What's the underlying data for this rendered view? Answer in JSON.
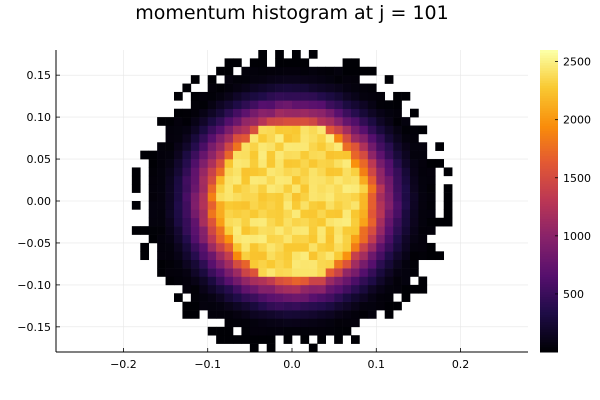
{
  "chart_data": {
    "type": "heatmap",
    "title": "momentum histogram at j = 101",
    "xlabel": "",
    "ylabel": "",
    "xlim": [
      -0.28,
      0.28
    ],
    "ylim": [
      -0.18,
      0.18
    ],
    "x_ticks": [
      -0.2,
      -0.1,
      0.0,
      0.1,
      0.2
    ],
    "x_tick_labels": [
      "−0.2",
      "−0.1",
      "0.0",
      "0.1",
      "0.2"
    ],
    "y_ticks": [
      0.15,
      0.1,
      0.05,
      0.0,
      -0.05,
      -0.1,
      -0.15
    ],
    "y_tick_labels": [
      "0.15",
      "0.10",
      "0.05",
      "0.00",
      "−0.05",
      "−0.10",
      "−0.15"
    ],
    "grid": true,
    "bin_width": 0.01,
    "colorbar": {
      "min": 0,
      "max": 2600,
      "ticks": [
        500,
        1000,
        1500,
        2000,
        2500
      ],
      "tick_labels": [
        "500",
        "1000",
        "1500",
        "2000",
        "2500"
      ],
      "colormap": "inferno"
    },
    "distribution": {
      "center": [
        0.0,
        0.0
      ],
      "core_value": 2500,
      "core_radius_x": 0.085,
      "core_radius_y": 0.095,
      "outer_radius_x": 0.17,
      "outer_radius_y": 0.165
    }
  }
}
